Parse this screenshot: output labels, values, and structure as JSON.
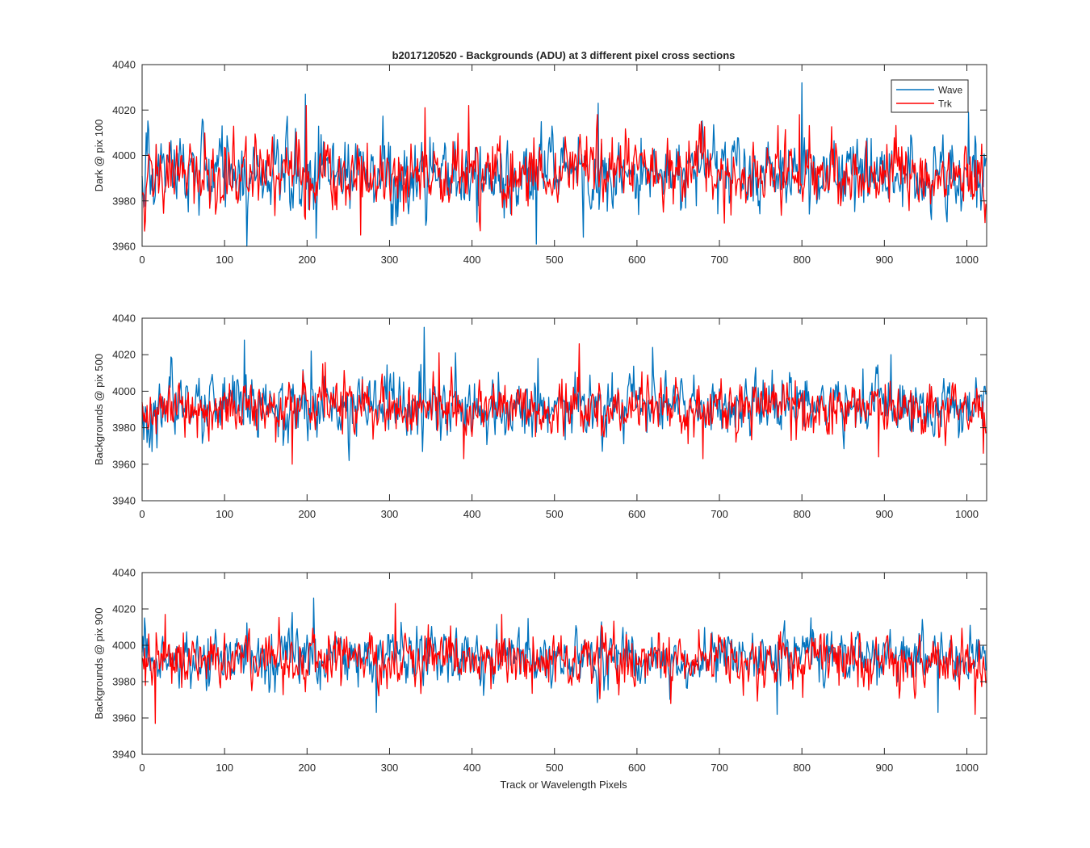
{
  "title": "b2017120520 - Backgrounds (ADU) at 3 different pixel cross sections",
  "xlabel": "Track or Wavelength Pixels",
  "colors": {
    "wave": "#0072BD",
    "trk": "#FF0000",
    "axes": "#262626"
  },
  "chart_data": [
    {
      "type": "line",
      "ylabel": "Dark @ pix 100",
      "xlim": [
        0,
        1024
      ],
      "ylim": [
        3960,
        4040
      ],
      "xticks": [
        0,
        100,
        200,
        300,
        400,
        500,
        600,
        700,
        800,
        900,
        1000
      ],
      "yticks": [
        3960,
        3980,
        4000,
        4020,
        4040
      ],
      "legend": {
        "placement": "top-right",
        "entries": [
          "Wave",
          "Trk"
        ]
      },
      "series": [
        {
          "name": "Wave",
          "color": "#0072BD",
          "n": 1024,
          "mean": 3991,
          "spread": 8,
          "min": 3960,
          "max": 4032,
          "spikes": [
            [
              5,
              4010
            ],
            [
              97,
              4013
            ],
            [
              127,
              3960
            ],
            [
              198,
              4027
            ],
            [
              478,
              3961
            ],
            [
              535,
              3964
            ],
            [
              553,
              4023
            ],
            [
              800,
              4032
            ],
            [
              1002,
              4019
            ]
          ]
        },
        {
          "name": "Trk",
          "color": "#FF0000",
          "n": 1024,
          "mean": 3991,
          "spread": 7,
          "min": 3965,
          "max": 4022,
          "spikes": [
            [
              199,
              4022
            ],
            [
              265,
              3965
            ],
            [
              343,
              4021
            ],
            [
              396,
              4022
            ],
            [
              552,
              4018
            ],
            [
              797,
              4018
            ],
            [
              1018,
              4005
            ]
          ]
        }
      ]
    },
    {
      "type": "line",
      "ylabel": "Backgrounds @ pix 500",
      "xlim": [
        0,
        1024
      ],
      "ylim": [
        3940,
        4040
      ],
      "xticks": [
        0,
        100,
        200,
        300,
        400,
        500,
        600,
        700,
        800,
        900,
        1000
      ],
      "yticks": [
        3940,
        3960,
        3980,
        4000,
        4020,
        4040
      ],
      "series": [
        {
          "name": "Wave",
          "color": "#0072BD",
          "n": 1024,
          "mean": 3992,
          "spread": 8,
          "min": 3962,
          "max": 4035,
          "spikes": [
            [
              124,
              4028
            ],
            [
              205,
              4022
            ],
            [
              342,
              4035
            ],
            [
              380,
              4021
            ],
            [
              480,
              4018
            ],
            [
              619,
              4024
            ],
            [
              908,
              4020
            ]
          ]
        },
        {
          "name": "Trk",
          "color": "#FF0000",
          "n": 1024,
          "mean": 3991,
          "spread": 7,
          "min": 3960,
          "max": 4026,
          "spikes": [
            [
              182,
              3960
            ],
            [
              360,
              4021
            ],
            [
              390,
              3963
            ],
            [
              530,
              4026
            ],
            [
              680,
              3963
            ],
            [
              893,
              3964
            ],
            [
              1020,
              3966
            ]
          ]
        }
      ]
    },
    {
      "type": "line",
      "ylabel": "Backgrounds @ pix 900",
      "xlim": [
        0,
        1024
      ],
      "ylim": [
        3940,
        4040
      ],
      "xticks": [
        0,
        100,
        200,
        300,
        400,
        500,
        600,
        700,
        800,
        900,
        1000
      ],
      "yticks": [
        3940,
        3960,
        3980,
        4000,
        4020,
        4040
      ],
      "series": [
        {
          "name": "Wave",
          "color": "#0072BD",
          "n": 1024,
          "mean": 3993,
          "spread": 7,
          "min": 3962,
          "max": 4026,
          "spikes": [
            [
              208,
              4026
            ],
            [
              284,
              3963
            ],
            [
              770,
              3962
            ],
            [
              965,
              3963
            ]
          ]
        },
        {
          "name": "Trk",
          "color": "#FF0000",
          "n": 1024,
          "mean": 3992,
          "spread": 7,
          "min": 3957,
          "max": 4023,
          "spikes": [
            [
              16,
              3957
            ],
            [
              28,
              4017
            ],
            [
              307,
              4023
            ],
            [
              436,
              4017
            ],
            [
              1010,
              3962
            ]
          ]
        }
      ]
    }
  ]
}
